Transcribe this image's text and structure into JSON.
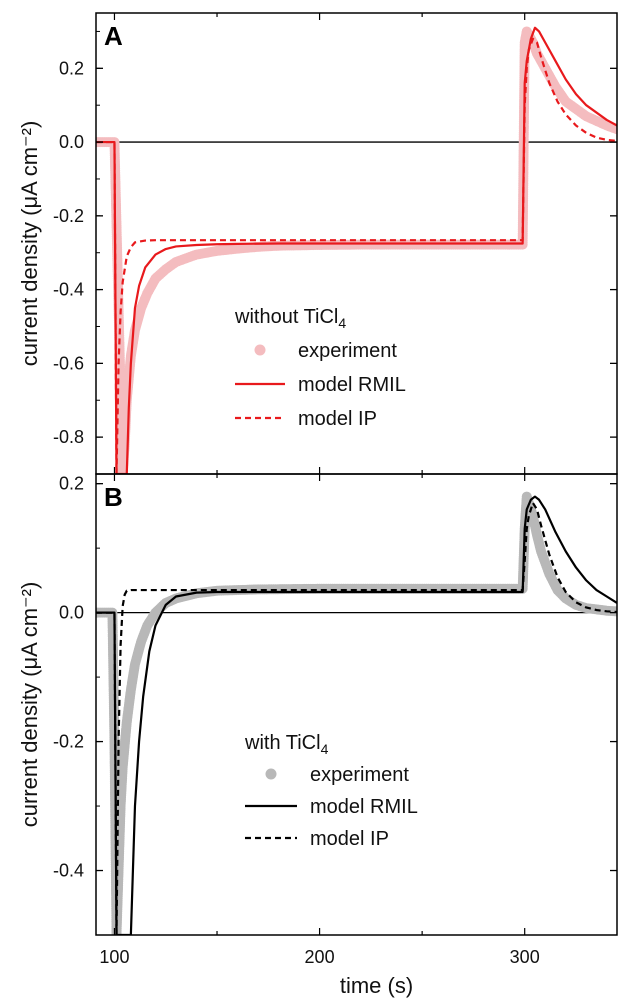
{
  "chart_data": [
    {
      "type": "line",
      "panel_label": "A",
      "ylabel": "current density (μA cm⁻²)",
      "xlim": [
        91,
        345
      ],
      "ylim": [
        -0.9,
        0.35
      ],
      "yticks": [
        0.2,
        0.0,
        -0.2,
        -0.4,
        -0.6,
        -0.8
      ],
      "ytick_labels": [
        "0.2",
        "0.0",
        "-0.2",
        "-0.4",
        "-0.6",
        "-0.8"
      ],
      "legend": {
        "title": "without TiCl",
        "title_subscript": "4",
        "entries": [
          "experiment",
          "model RMIL",
          "model IP"
        ]
      },
      "colors": {
        "experiment": "#f4bcbf",
        "model_rmil": "#e8191c",
        "model_ip": "#e8191c"
      },
      "series": [
        {
          "name": "experiment",
          "style": "markers",
          "x": [
            91,
            95,
            100,
            104,
            105,
            106,
            108,
            110,
            113,
            116,
            120,
            125,
            130,
            140,
            150,
            160,
            170,
            180,
            200,
            220,
            240,
            260,
            280,
            299,
            300,
            301,
            302,
            304,
            306,
            310,
            315,
            320,
            330,
            340,
            345
          ],
          "y": [
            0.0,
            0.0,
            0.0,
            -0.9,
            -0.82,
            -0.7,
            -0.58,
            -0.51,
            -0.45,
            -0.41,
            -0.37,
            -0.345,
            -0.325,
            -0.305,
            -0.295,
            -0.289,
            -0.284,
            -0.281,
            -0.279,
            -0.278,
            -0.278,
            -0.278,
            -0.278,
            -0.278,
            0.27,
            0.3,
            0.29,
            0.27,
            0.24,
            0.2,
            0.15,
            0.11,
            0.07,
            0.045,
            0.035
          ]
        },
        {
          "name": "model RMIL",
          "style": "solid",
          "x": [
            91,
            100,
            101,
            106,
            107,
            108,
            110,
            112,
            115,
            120,
            125,
            130,
            140,
            150,
            160,
            180,
            200,
            250,
            299,
            300,
            301,
            303,
            305,
            307,
            310,
            315,
            320,
            325,
            330,
            340,
            345
          ],
          "y": [
            0.0,
            0.0,
            -0.9,
            -0.9,
            -0.72,
            -0.6,
            -0.45,
            -0.39,
            -0.34,
            -0.305,
            -0.29,
            -0.283,
            -0.279,
            -0.277,
            -0.276,
            -0.275,
            -0.275,
            -0.275,
            -0.275,
            0.16,
            0.22,
            0.28,
            0.31,
            0.3,
            0.27,
            0.22,
            0.17,
            0.13,
            0.1,
            0.06,
            0.045
          ]
        },
        {
          "name": "model IP",
          "style": "dashed",
          "x": [
            91,
            100,
            101,
            102,
            103,
            104,
            106,
            108,
            110,
            115,
            120,
            200,
            299,
            300,
            301,
            302,
            304,
            306,
            308,
            312,
            316,
            320,
            325,
            330,
            335,
            340,
            345
          ],
          "y": [
            0.0,
            0.0,
            -0.9,
            -0.6,
            -0.46,
            -0.38,
            -0.31,
            -0.285,
            -0.272,
            -0.267,
            -0.266,
            -0.266,
            -0.266,
            0.1,
            0.2,
            0.25,
            0.28,
            0.27,
            0.23,
            0.16,
            0.11,
            0.075,
            0.045,
            0.025,
            0.012,
            0.006,
            0.003
          ]
        }
      ]
    },
    {
      "type": "line",
      "panel_label": "B",
      "xlabel": "time (s)",
      "ylabel": "current density (μA cm⁻²)",
      "xlim": [
        91,
        345
      ],
      "ylim": [
        -0.5,
        0.215
      ],
      "xticks": [
        100,
        200,
        300
      ],
      "xtick_labels": [
        "100",
        "200",
        "300"
      ],
      "yticks": [
        0.2,
        0.0,
        -0.2,
        -0.4
      ],
      "ytick_labels": [
        "0.2",
        "0.0",
        "-0.2",
        "-0.4"
      ],
      "legend": {
        "title": "with TiCl",
        "title_subscript": "4",
        "entries": [
          "experiment",
          "model RMIL",
          "model IP"
        ]
      },
      "colors": {
        "experiment": "#b8b8b8",
        "model_rmil": "#000000",
        "model_ip": "#000000"
      },
      "series": [
        {
          "name": "experiment",
          "style": "markers",
          "x": [
            91,
            95,
            99,
            100,
            101,
            102,
            103,
            104,
            106,
            108,
            110,
            113,
            116,
            120,
            125,
            130,
            140,
            150,
            170,
            200,
            250,
            299,
            300,
            301,
            302,
            304,
            306,
            308,
            312,
            316,
            320,
            325,
            330,
            340,
            345
          ],
          "y": [
            0.0,
            0.0,
            0.0,
            -0.2,
            -0.5,
            -0.4,
            -0.3,
            -0.24,
            -0.17,
            -0.12,
            -0.08,
            -0.045,
            -0.02,
            0.0,
            0.015,
            0.022,
            0.03,
            0.034,
            0.036,
            0.037,
            0.037,
            0.037,
            0.13,
            0.18,
            0.17,
            0.15,
            0.12,
            0.095,
            0.06,
            0.035,
            0.022,
            0.012,
            0.007,
            0.003,
            0.002
          ]
        },
        {
          "name": "model RMIL",
          "style": "solid",
          "x": [
            91,
            100,
            101,
            108,
            109,
            110,
            112,
            114,
            117,
            120,
            125,
            130,
            140,
            150,
            200,
            299,
            300,
            301,
            303,
            305,
            307,
            310,
            315,
            320,
            325,
            330,
            335,
            340,
            345
          ],
          "y": [
            0.0,
            0.0,
            -0.5,
            -0.5,
            -0.4,
            -0.3,
            -0.2,
            -0.13,
            -0.06,
            -0.02,
            0.012,
            0.025,
            0.031,
            0.032,
            0.032,
            0.032,
            0.13,
            0.16,
            0.175,
            0.18,
            0.175,
            0.16,
            0.125,
            0.095,
            0.07,
            0.05,
            0.035,
            0.025,
            0.015
          ]
        },
        {
          "name": "model IP",
          "style": "dashed",
          "x": [
            91,
            100,
            101,
            102,
            103,
            104,
            105,
            106,
            108,
            200,
            299,
            300,
            301,
            302,
            304,
            306,
            308,
            312,
            316,
            320,
            325,
            330,
            335,
            340,
            345
          ],
          "y": [
            0.0,
            0.0,
            -0.5,
            -0.2,
            -0.05,
            0.01,
            0.028,
            0.034,
            0.035,
            0.035,
            0.035,
            0.08,
            0.13,
            0.15,
            0.17,
            0.16,
            0.135,
            0.09,
            0.055,
            0.032,
            0.016,
            0.008,
            0.004,
            0.002,
            0.001
          ]
        }
      ]
    }
  ]
}
